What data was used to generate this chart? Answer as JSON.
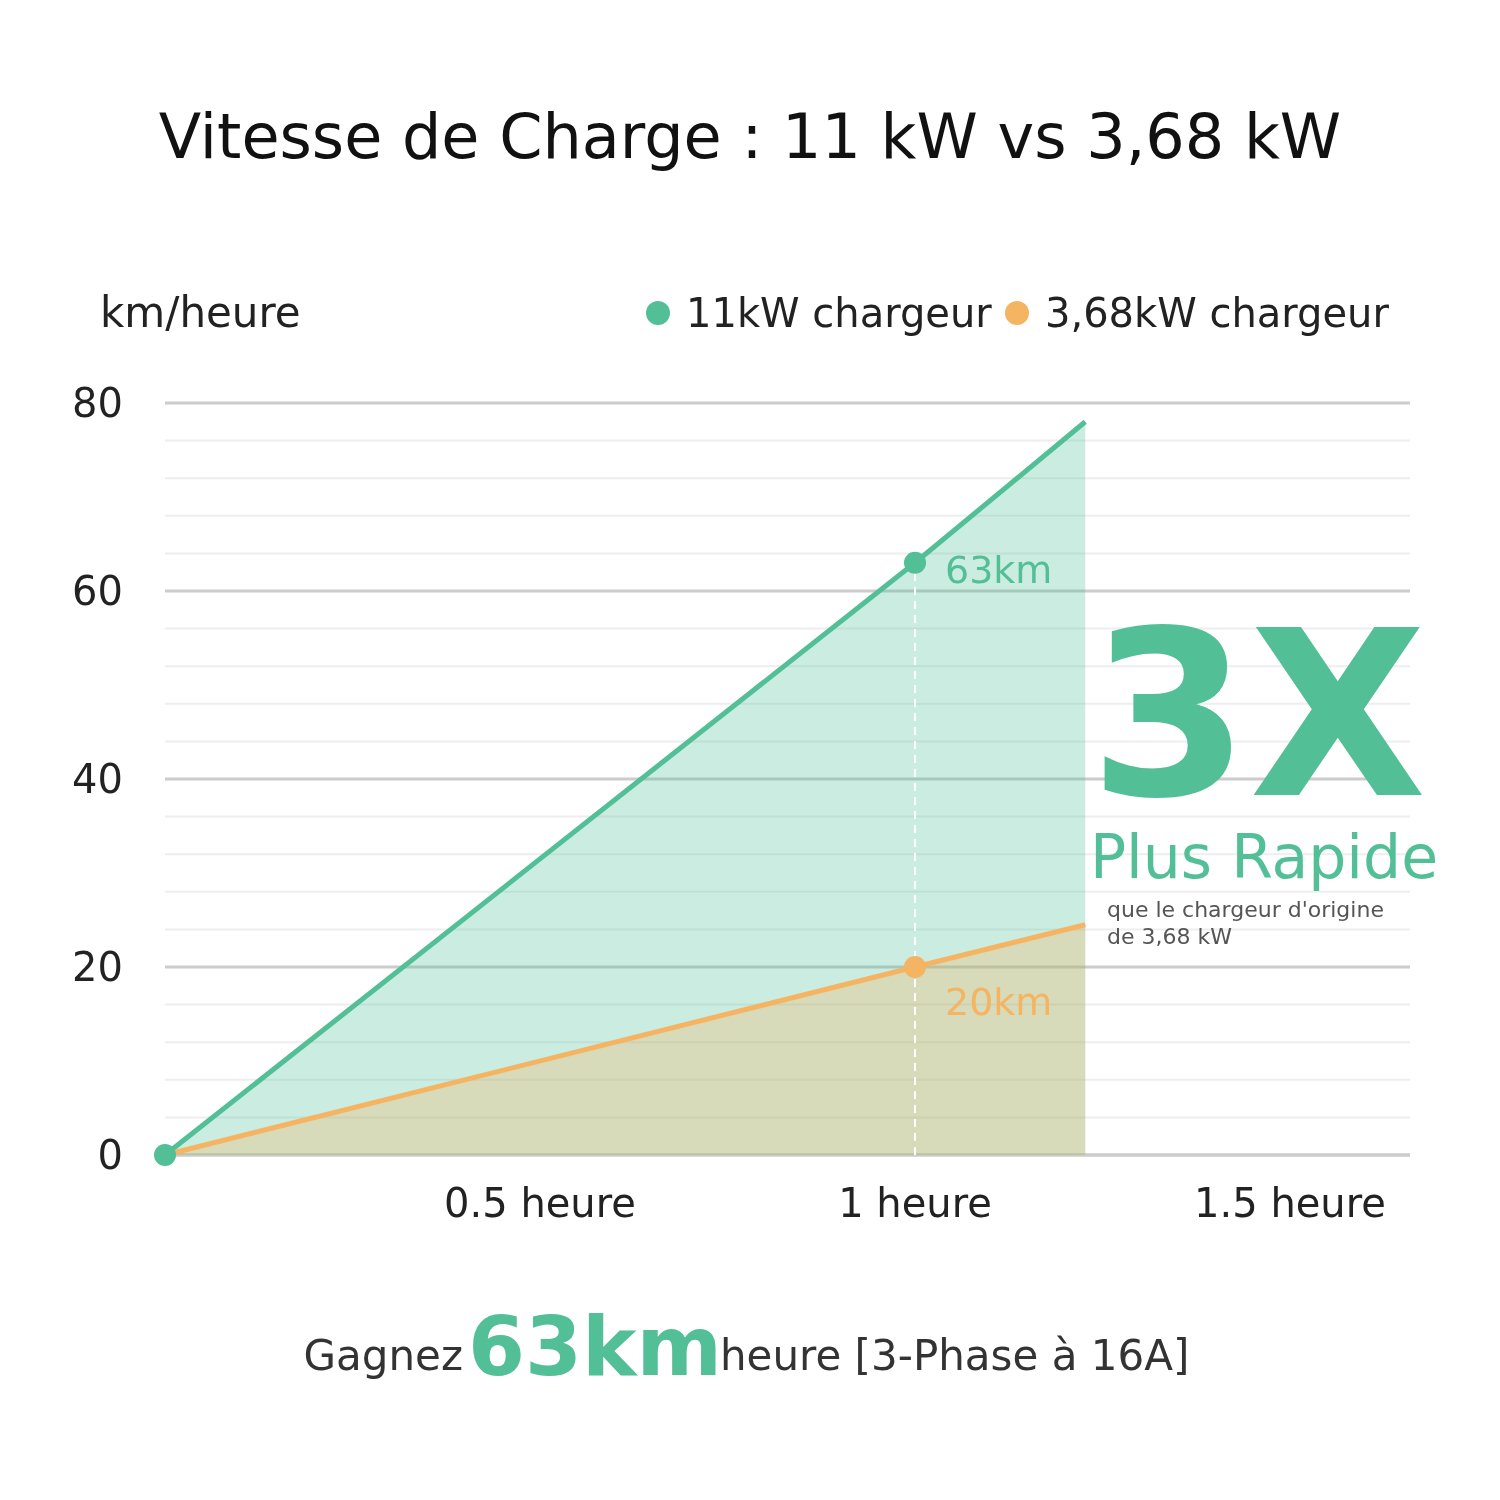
{
  "chart_data": {
    "type": "area",
    "title": "Vitesse de Charge : 11 kW vs 3,68 kW",
    "ylabel": "km/heure",
    "x": [
      0,
      1,
      1.227
    ],
    "series": [
      {
        "name": "11kW chargeur",
        "color": "#52bf97",
        "values": [
          0,
          63,
          78
        ]
      },
      {
        "name": "3,68kW chargeur",
        "color": "#f5b461",
        "values": [
          0,
          20,
          24.5
        ]
      },
      {
        "type": "scatter",
        "marker": "circle",
        "color": "#52bf97",
        "values": [
          0,
          63,
          null
        ],
        "value_labels": [
          null,
          "63km",
          null
        ]
      },
      {
        "type": "scatter",
        "marker": "circle",
        "color": "#f5b461",
        "values": [
          null,
          20,
          null
        ],
        "value_labels": [
          null,
          "20km",
          null
        ]
      }
    ],
    "xlim": [
      0,
      1.66
    ],
    "xticks": [
      {
        "value": 0.5,
        "label": "0.5 heure"
      },
      {
        "value": 1,
        "label": "1 heure"
      },
      {
        "value": 1.5,
        "label": "1.5 heure"
      }
    ],
    "ylim": [
      0,
      80
    ],
    "yticks": [
      0,
      {
        "value": 4,
        "label": null
      },
      {
        "value": 8,
        "label": null
      },
      {
        "value": 12,
        "label": null
      },
      {
        "value": 16,
        "label": null
      },
      20,
      {
        "value": 24,
        "label": null
      },
      {
        "value": 28,
        "label": null
      },
      {
        "value": 32,
        "label": null
      },
      {
        "value": 36,
        "label": null
      },
      40,
      {
        "value": 44,
        "label": null
      },
      {
        "value": 48,
        "label": null
      },
      {
        "value": 52,
        "label": null
      },
      {
        "value": 56,
        "label": null
      },
      60,
      {
        "value": 64,
        "label": null
      },
      {
        "value": 68,
        "label": null
      },
      {
        "value": 72,
        "label": null
      },
      {
        "value": 76,
        "label": null
      },
      80
    ],
    "grid": "y",
    "legend": "top right",
    "ref_lines": [
      {
        "axis": "x",
        "value": 1,
        "color": "#ffffff",
        "line_style": "dashed"
      }
    ],
    "annotations": [
      "3X",
      "Plus Rapide",
      "que le chargeur d'origine",
      "de 3,68 kW",
      "Gagnez",
      "63km",
      "heure [3-Phase à 16A]"
    ]
  }
}
